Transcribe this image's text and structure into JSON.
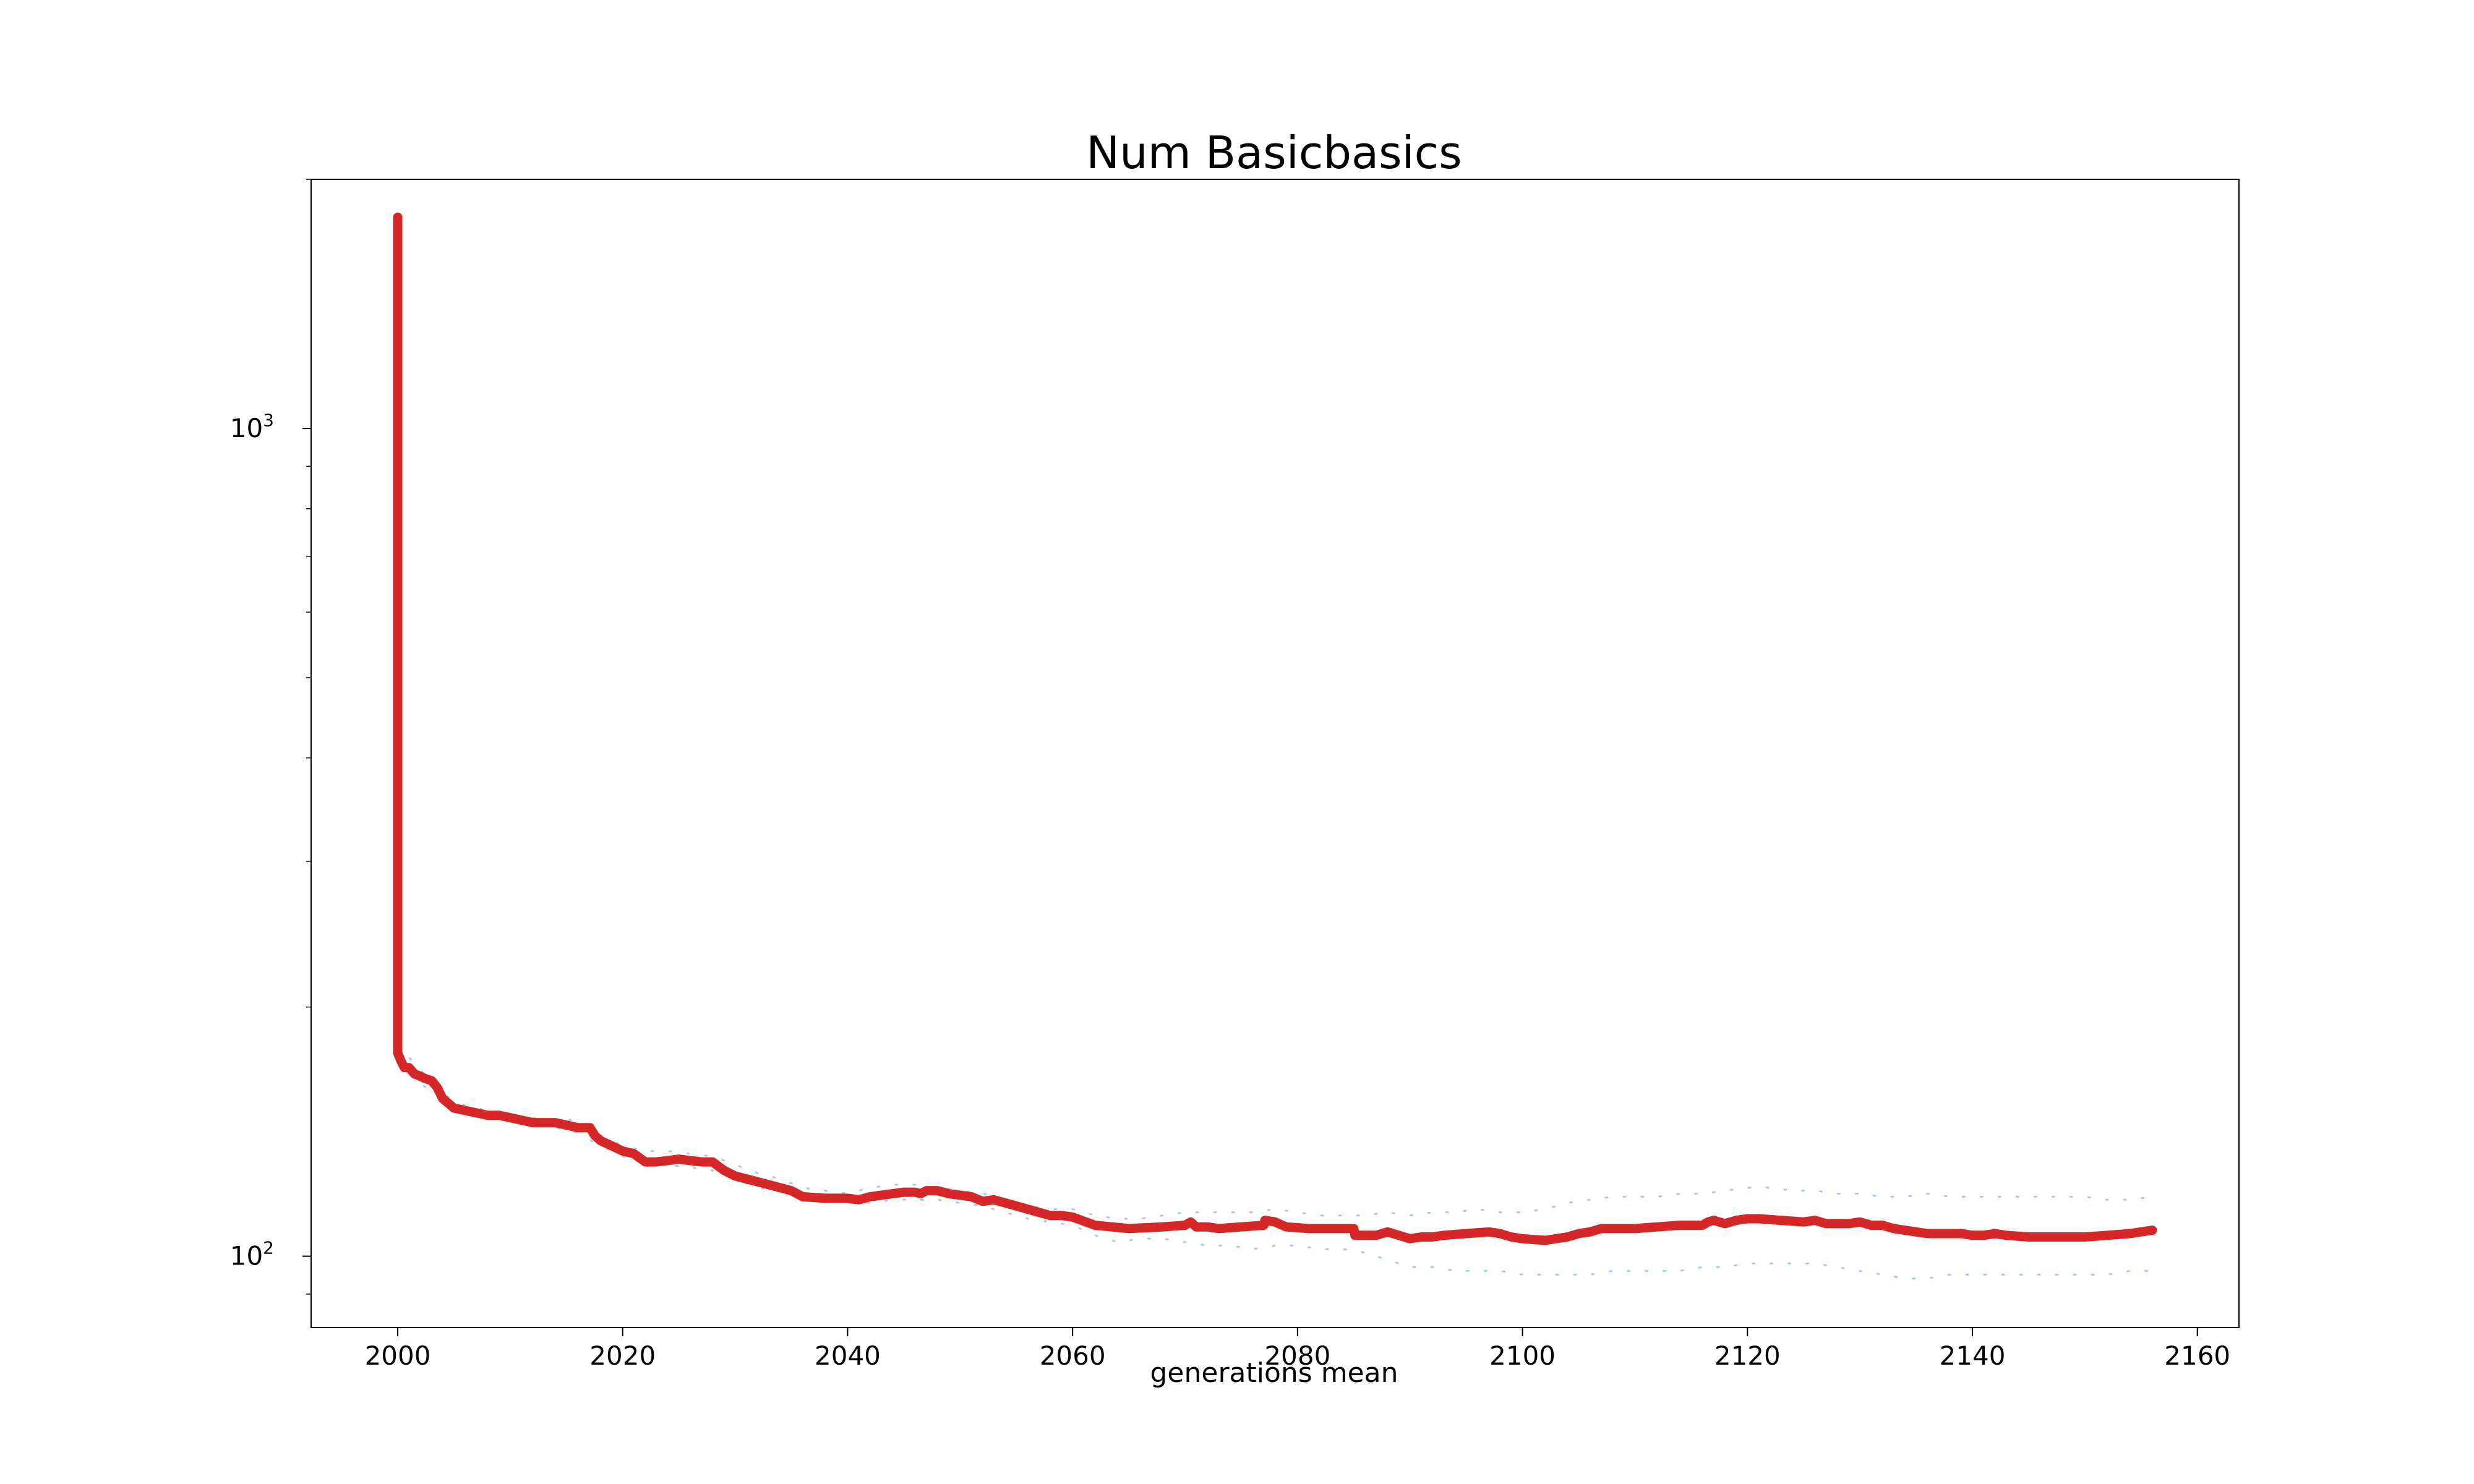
{
  "chart_data": {
    "type": "line",
    "title": "Num Basicbasics",
    "xlabel": "generations mean",
    "ylabel": "",
    "xlim": [
      1992.3,
      2163.7
    ],
    "ylim": [
      82,
      2000
    ],
    "yscale": "log",
    "grid": false,
    "xticks": [
      2000,
      2020,
      2040,
      2060,
      2080,
      2100,
      2120,
      2140,
      2160
    ],
    "xtick_labels": [
      "2000",
      "2020",
      "2040",
      "2060",
      "2080",
      "2100",
      "2120",
      "2140",
      "2160"
    ],
    "yticks": [
      100,
      1000
    ],
    "ytick_labels": [
      {
        "base": "10",
        "exp": "2"
      },
      {
        "base": "10",
        "exp": "3"
      }
    ],
    "series": [
      {
        "color": "#d62728",
        "style": "solid",
        "x": [
          2000,
          2000,
          2000.3,
          2000.6,
          2001,
          2001.5,
          2002,
          2002.4,
          2003,
          2003.5,
          2004,
          2005,
          2006,
          2007,
          2008,
          2009,
          2010,
          2011,
          2012,
          2013,
          2014,
          2015,
          2016,
          2017,
          2017.1,
          2017.5,
          2018,
          2019,
          2020,
          2021,
          2022,
          2023,
          2024,
          2025,
          2026,
          2027,
          2028,
          2029,
          2030,
          2031,
          2032,
          2033,
          2034,
          2035,
          2036,
          2038,
          2040,
          2041,
          2042,
          2043,
          2044,
          2045,
          2046,
          2046.5,
          2047,
          2048,
          2049,
          2050,
          2051,
          2052,
          2053,
          2055,
          2057,
          2058,
          2059,
          2060,
          2062,
          2065,
          2068,
          2070,
          2070.5,
          2071,
          2072,
          2073,
          2075,
          2077,
          2077.1,
          2078,
          2079,
          2081,
          2083,
          2085,
          2085.1,
          2087,
          2088,
          2089,
          2090,
          2091,
          2092,
          2093,
          2095,
          2097,
          2098,
          2099,
          2100,
          2102,
          2104,
          2105,
          2106,
          2107,
          2108,
          2110,
          2112,
          2114,
          2116,
          2116.5,
          2117,
          2118,
          2119,
          2120,
          2121,
          2123,
          2125,
          2126,
          2127,
          2128,
          2129,
          2130,
          2131,
          2132,
          2133,
          2134,
          2135,
          2136,
          2137,
          2138,
          2139,
          2140,
          2141,
          2142,
          2143,
          2145,
          2148,
          2150,
          2152,
          2154,
          2156
        ],
        "y": [
          1800,
          176,
          172,
          169,
          169,
          166,
          165,
          164,
          163,
          160,
          155,
          151,
          150,
          149,
          148,
          148,
          147,
          146,
          145,
          145,
          145,
          144,
          143,
          143,
          143,
          140,
          138,
          136,
          134,
          133,
          130,
          130,
          130.5,
          131,
          130.5,
          130,
          130,
          127,
          125,
          124,
          123,
          122,
          121,
          120,
          118,
          117.5,
          117.5,
          117,
          118,
          118.5,
          119,
          119.5,
          119.5,
          119,
          120,
          120,
          119,
          118.5,
          118,
          116.5,
          117,
          115,
          113,
          112,
          112,
          111.5,
          109,
          108,
          108.5,
          109,
          110,
          108.5,
          108.5,
          108,
          108.5,
          109,
          110.5,
          110,
          108.5,
          108,
          108,
          108,
          106,
          106,
          107,
          106,
          105,
          105.5,
          105.5,
          106,
          106.5,
          107,
          106.5,
          105.5,
          105,
          104.5,
          105.5,
          106.5,
          107,
          108,
          108,
          108,
          108.5,
          109,
          109,
          110,
          110.5,
          109.5,
          110.5,
          111,
          111,
          110.5,
          110,
          110.5,
          109.5,
          109.5,
          109.5,
          110,
          109,
          109,
          108,
          107.5,
          107,
          106.5,
          106.5,
          106.5,
          106.5,
          106,
          106,
          106.5,
          106,
          105.5,
          105.5,
          105.5,
          106,
          106.5,
          107.5
        ]
      },
      {
        "color": "#aec7e8",
        "style": "dotted",
        "x": [
          2000,
          2002,
          2004,
          2006,
          2008,
          2010,
          2012,
          2014,
          2016,
          2018,
          2020,
          2022,
          2024,
          2026,
          2028,
          2030,
          2032,
          2034,
          2036,
          2038,
          2040,
          2042,
          2044,
          2046,
          2048,
          2050,
          2052,
          2054,
          2056,
          2058,
          2060,
          2062,
          2064,
          2066,
          2068,
          2070,
          2072,
          2074,
          2076,
          2078,
          2080,
          2082,
          2084,
          2086,
          2088,
          2090,
          2092,
          2094,
          2096,
          2098,
          2100,
          2102,
          2104,
          2106,
          2108,
          2110,
          2112,
          2114,
          2116,
          2118,
          2120,
          2122,
          2124,
          2126,
          2128,
          2130,
          2132,
          2134,
          2136,
          2138,
          2140,
          2142,
          2144,
          2146,
          2148,
          2150,
          2152,
          2154,
          2156
        ],
        "y": [
          180,
          168,
          157,
          152,
          150,
          148,
          147,
          146,
          146,
          140,
          136,
          134,
          134,
          133,
          132,
          129,
          126,
          124,
          121,
          120,
          119,
          121,
          122,
          122,
          121,
          120,
          119,
          117,
          115,
          114,
          114,
          112,
          111,
          111,
          112,
          113,
          113,
          113,
          113,
          114,
          113,
          112,
          112,
          112,
          113,
          112,
          113,
          113,
          114,
          113,
          113,
          114,
          116,
          117,
          118,
          118,
          118,
          119,
          119,
          120,
          121,
          121,
          120,
          120,
          119,
          119,
          118,
          118,
          119,
          118,
          118,
          118,
          118,
          118,
          118,
          118,
          117,
          117,
          118
        ]
      },
      {
        "color": "#aec7e8",
        "style": "dotted",
        "x": [
          2000,
          2002,
          2004,
          2006,
          2008,
          2010,
          2012,
          2014,
          2016,
          2018,
          2020,
          2022,
          2024,
          2026,
          2028,
          2030,
          2032,
          2034,
          2036,
          2038,
          2040,
          2042,
          2044,
          2046,
          2048,
          2050,
          2052,
          2054,
          2056,
          2058,
          2060,
          2062,
          2064,
          2066,
          2068,
          2070,
          2072,
          2074,
          2076,
          2078,
          2080,
          2082,
          2084,
          2086,
          2088,
          2090,
          2092,
          2094,
          2096,
          2098,
          2100,
          2102,
          2104,
          2106,
          2108,
          2110,
          2112,
          2114,
          2116,
          2118,
          2120,
          2122,
          2124,
          2126,
          2128,
          2130,
          2132,
          2134,
          2136,
          2138,
          2140,
          2142,
          2144,
          2146,
          2148,
          2150,
          2152,
          2154,
          2156
        ],
        "y": [
          172,
          162,
          154,
          149,
          147,
          146,
          144,
          143,
          141,
          136,
          132,
          130,
          129,
          128,
          127,
          124,
          121,
          120,
          117,
          117,
          116,
          116,
          117,
          117,
          117,
          116,
          115,
          113,
          111,
          110,
          109,
          106,
          104,
          105,
          105,
          104,
          103,
          103,
          102,
          103,
          103,
          102,
          102,
          101,
          99,
          97,
          97,
          96,
          96,
          96,
          95,
          95,
          95,
          95,
          96,
          96,
          96,
          96,
          97,
          97,
          98,
          98,
          98,
          98,
          97,
          96,
          95,
          94,
          94,
          95,
          95,
          95,
          95,
          95,
          95,
          95,
          95,
          96,
          96
        ]
      }
    ]
  }
}
